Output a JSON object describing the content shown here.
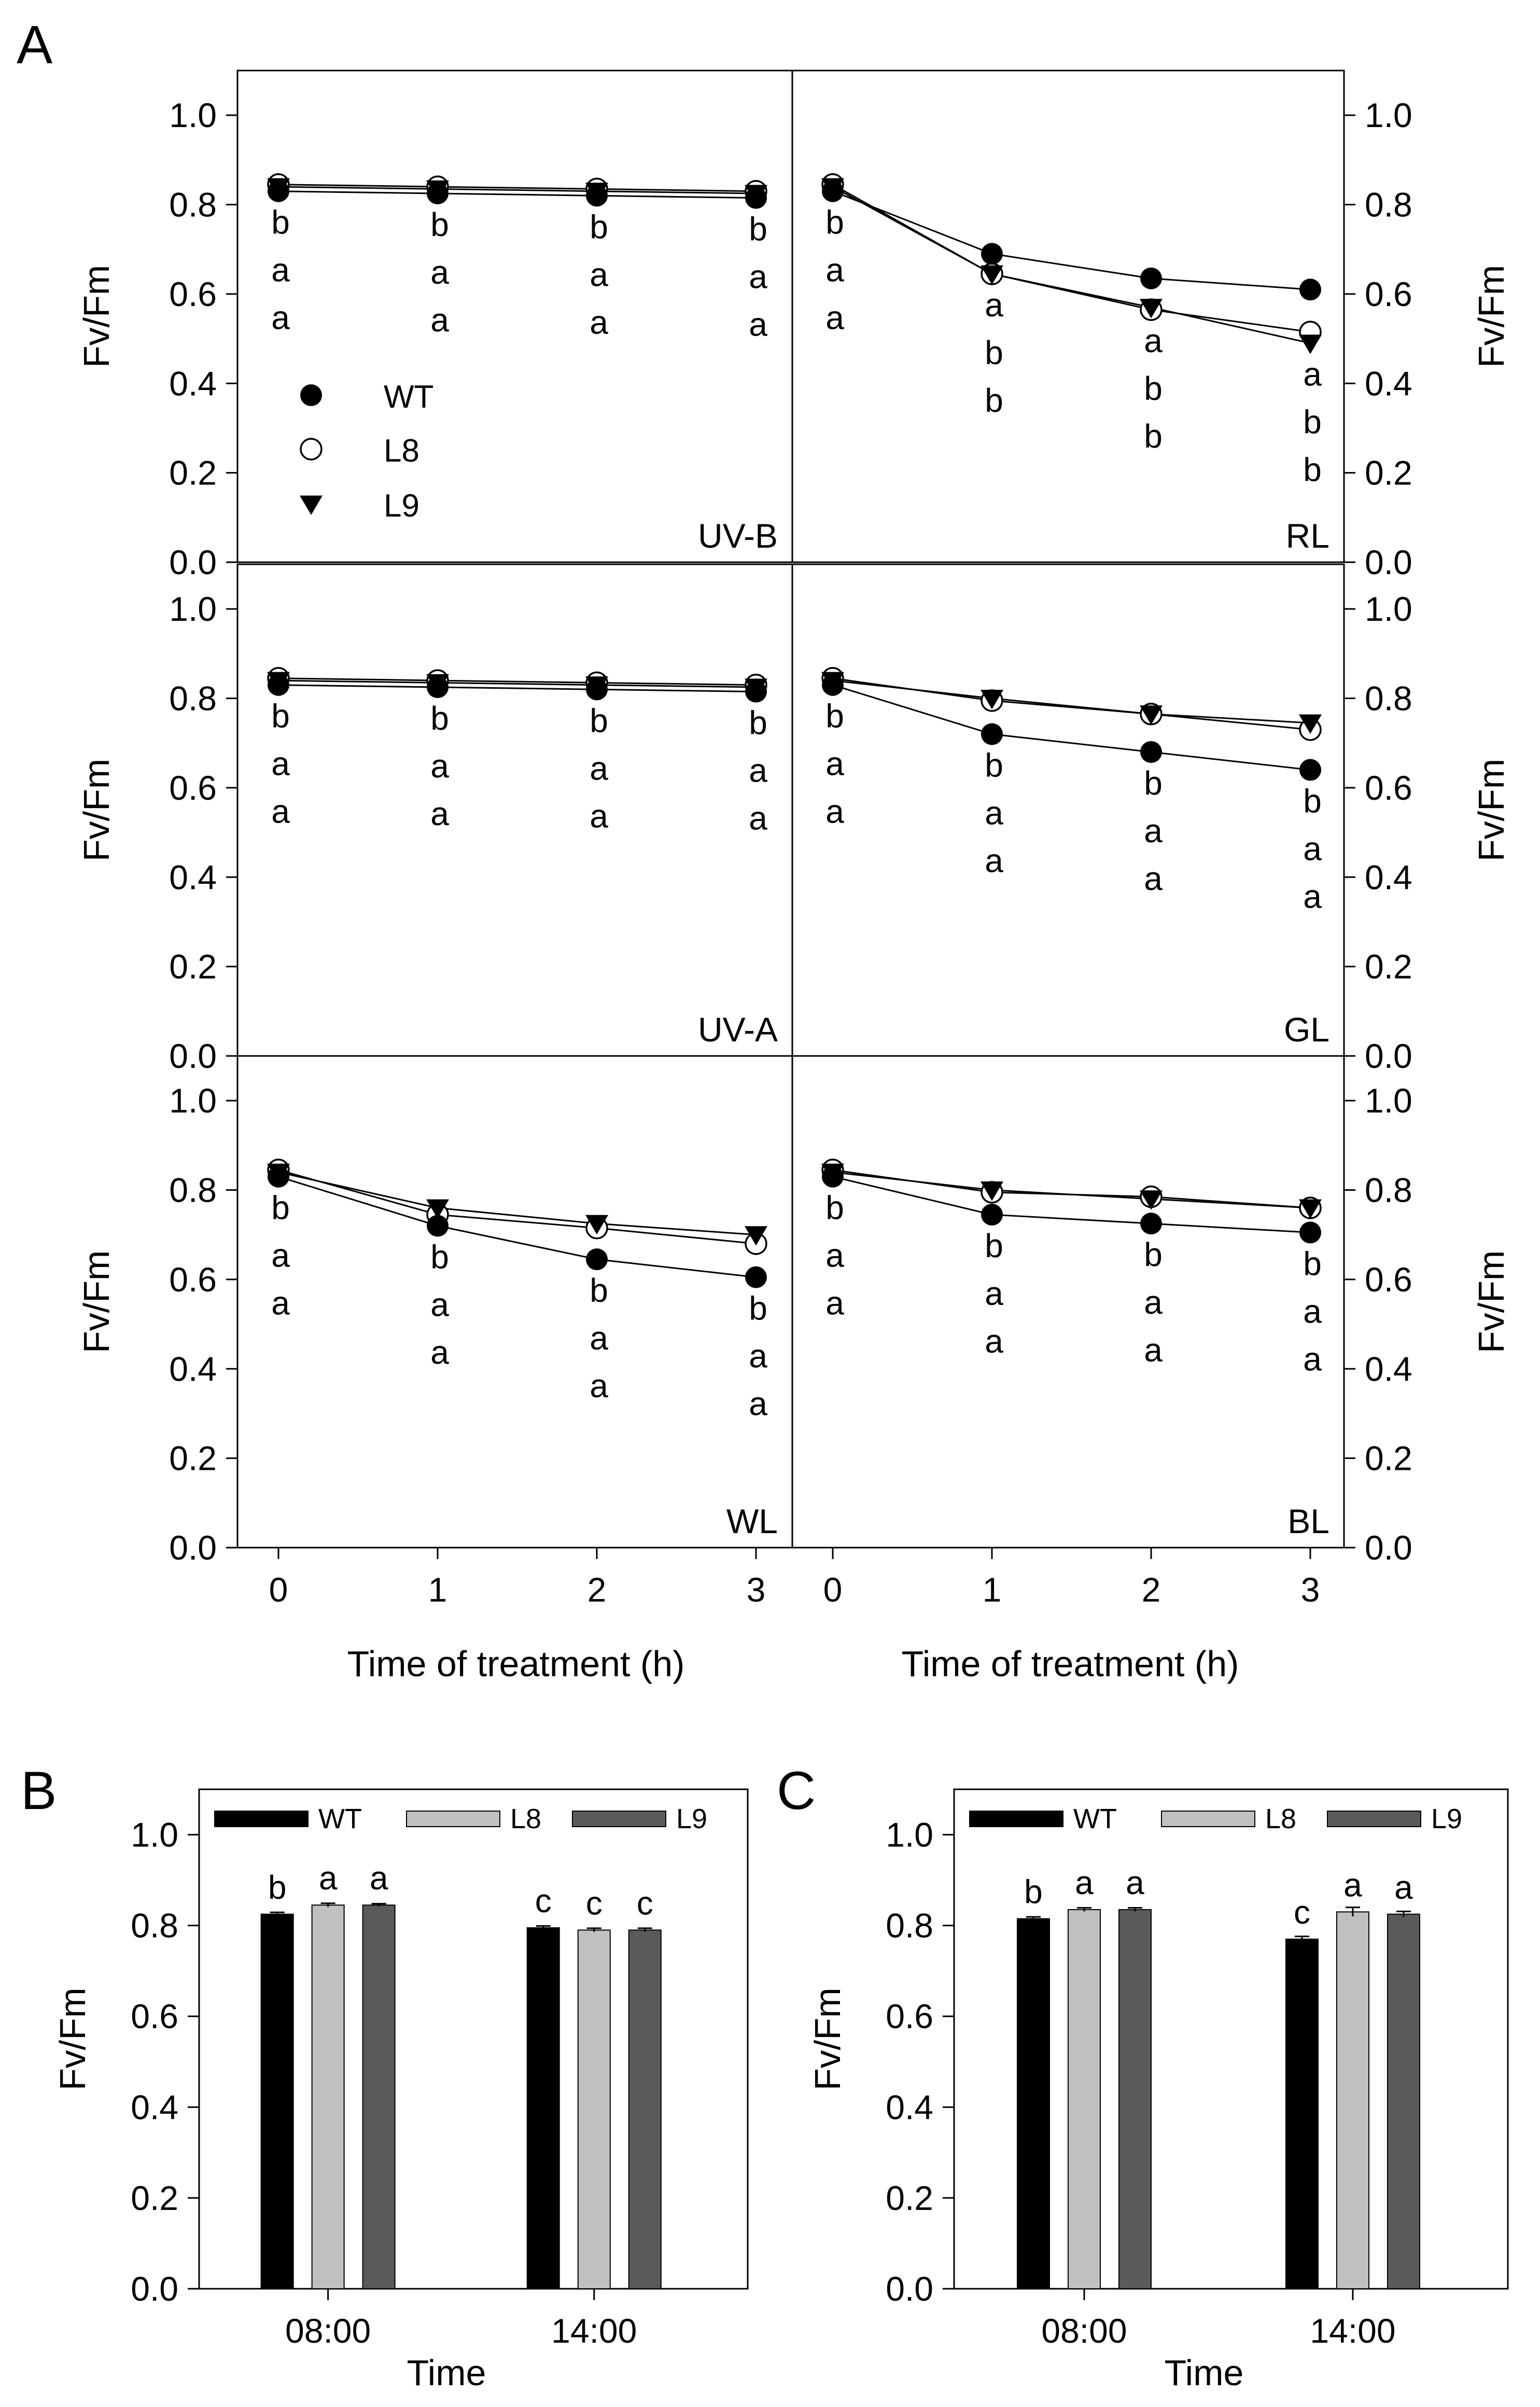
{
  "figure": {
    "panel_letters": [
      "A",
      "B",
      "C"
    ],
    "legend": [
      {
        "name": "WT",
        "marker": "filled-circle"
      },
      {
        "name": "L8",
        "marker": "open-circle"
      },
      {
        "name": "L9",
        "marker": "filled-triangle-down"
      }
    ]
  },
  "colors": {
    "WT_bar": "#000000",
    "L8_bar": "#c0c0c0",
    "L9_bar": "#5a5a5a",
    "axis": "#000000"
  },
  "chart_data": [
    {
      "id": "A-UV-B",
      "type": "line",
      "label": "UV-B",
      "x": [
        0,
        1,
        2,
        3
      ],
      "xlabel": "Time of treatment (h)",
      "ylabel": "Fv/Fm",
      "ylim": [
        0,
        1.1
      ],
      "series": [
        {
          "name": "WT",
          "values": [
            0.83,
            0.825,
            0.82,
            0.815
          ]
        },
        {
          "name": "L8",
          "values": [
            0.845,
            0.84,
            0.835,
            0.83
          ]
        },
        {
          "name": "L9",
          "values": [
            0.84,
            0.835,
            0.83,
            0.825
          ]
        }
      ],
      "sig_letters": [
        [
          "b",
          "a",
          "a"
        ],
        [
          "b",
          "a",
          "a"
        ],
        [
          "b",
          "a",
          "a"
        ],
        [
          "b",
          "a",
          "a"
        ]
      ]
    },
    {
      "id": "A-RL",
      "type": "line",
      "label": "RL",
      "x": [
        0,
        1,
        2,
        3
      ],
      "xlabel": "Time of treatment (h)",
      "ylabel": "Fv/Fm",
      "ylim": [
        0,
        1.1
      ],
      "series": [
        {
          "name": "WT",
          "values": [
            0.83,
            0.69,
            0.635,
            0.61
          ]
        },
        {
          "name": "L8",
          "values": [
            0.845,
            0.645,
            0.565,
            0.515
          ]
        },
        {
          "name": "L9",
          "values": [
            0.84,
            0.645,
            0.57,
            0.49
          ]
        }
      ],
      "sig_letters": [
        [
          "b",
          "a",
          "a"
        ],
        [
          "a",
          "b",
          "b"
        ],
        [
          "a",
          "b",
          "b"
        ],
        [
          "a",
          "b",
          "b"
        ]
      ]
    },
    {
      "id": "A-UV-A",
      "type": "line",
      "label": "UV-A",
      "x": [
        0,
        1,
        2,
        3
      ],
      "xlabel": "Time of treatment (h)",
      "ylabel": "Fv/Fm",
      "ylim": [
        0,
        1.1
      ],
      "series": [
        {
          "name": "WT",
          "values": [
            0.83,
            0.825,
            0.82,
            0.815
          ]
        },
        {
          "name": "L8",
          "values": [
            0.845,
            0.84,
            0.835,
            0.83
          ]
        },
        {
          "name": "L9",
          "values": [
            0.84,
            0.835,
            0.83,
            0.825
          ]
        }
      ],
      "sig_letters": [
        [
          "b",
          "a",
          "a"
        ],
        [
          "b",
          "a",
          "a"
        ],
        [
          "b",
          "a",
          "a"
        ],
        [
          "b",
          "a",
          "a"
        ]
      ]
    },
    {
      "id": "A-GL",
      "type": "line",
      "label": "GL",
      "x": [
        0,
        1,
        2,
        3
      ],
      "xlabel": "Time of treatment (h)",
      "ylabel": "Fv/Fm",
      "ylim": [
        0,
        1.1
      ],
      "series": [
        {
          "name": "WT",
          "values": [
            0.83,
            0.72,
            0.68,
            0.64
          ]
        },
        {
          "name": "L8",
          "values": [
            0.845,
            0.795,
            0.765,
            0.73
          ]
        },
        {
          "name": "L9",
          "values": [
            0.84,
            0.8,
            0.765,
            0.745
          ]
        }
      ],
      "sig_letters": [
        [
          "b",
          "a",
          "a"
        ],
        [
          "b",
          "a",
          "a"
        ],
        [
          "b",
          "a",
          "a"
        ],
        [
          "b",
          "a",
          "a"
        ]
      ]
    },
    {
      "id": "A-WL",
      "type": "line",
      "label": "WL",
      "x": [
        0,
        1,
        2,
        3
      ],
      "xlabel": "Time of treatment (h)",
      "ylabel": "Fv/Fm",
      "ylim": [
        0,
        1.1
      ],
      "series": [
        {
          "name": "WT",
          "values": [
            0.83,
            0.72,
            0.645,
            0.605
          ]
        },
        {
          "name": "L8",
          "values": [
            0.845,
            0.745,
            0.715,
            0.68
          ]
        },
        {
          "name": "L9",
          "values": [
            0.84,
            0.76,
            0.725,
            0.7
          ]
        }
      ],
      "sig_letters": [
        [
          "b",
          "a",
          "a"
        ],
        [
          "b",
          "a",
          "a"
        ],
        [
          "b",
          "a",
          "a"
        ],
        [
          "b",
          "a",
          "a"
        ]
      ]
    },
    {
      "id": "A-BL",
      "type": "line",
      "label": "BL",
      "x": [
        0,
        1,
        2,
        3
      ],
      "xlabel": "Time of treatment (h)",
      "ylabel": "Fv/Fm",
      "ylim": [
        0,
        1.1
      ],
      "series": [
        {
          "name": "WT",
          "values": [
            0.83,
            0.745,
            0.725,
            0.705
          ]
        },
        {
          "name": "L8",
          "values": [
            0.845,
            0.795,
            0.785,
            0.76
          ]
        },
        {
          "name": "L9",
          "values": [
            0.84,
            0.8,
            0.78,
            0.76
          ]
        }
      ],
      "sig_letters": [
        [
          "b",
          "a",
          "a"
        ],
        [
          "b",
          "a",
          "a"
        ],
        [
          "b",
          "a",
          "a"
        ],
        [
          "b",
          "a",
          "a"
        ]
      ]
    },
    {
      "id": "B",
      "type": "bar",
      "categories": [
        "08:00",
        "14:00"
      ],
      "xlabel": "Time",
      "ylabel": "Fv/Fm",
      "ylim": [
        0,
        1.1
      ],
      "series": [
        {
          "name": "WT",
          "values": [
            0.825,
            0.795
          ],
          "errors": [
            0.004,
            0.004
          ]
        },
        {
          "name": "L8",
          "values": [
            0.845,
            0.79
          ],
          "errors": [
            0.004,
            0.004
          ]
        },
        {
          "name": "L9",
          "values": [
            0.845,
            0.79
          ],
          "errors": [
            0.003,
            0.004
          ]
        }
      ],
      "sig_letters": [
        [
          "b",
          "a",
          "a"
        ],
        [
          "c",
          "c",
          "c"
        ]
      ]
    },
    {
      "id": "C",
      "type": "bar",
      "categories": [
        "08:00",
        "14:00"
      ],
      "xlabel": "Time",
      "ylabel": "Fv/Fm",
      "ylim": [
        0,
        1.1
      ],
      "series": [
        {
          "name": "WT",
          "values": [
            0.815,
            0.77
          ],
          "errors": [
            0.004,
            0.006
          ]
        },
        {
          "name": "L8",
          "values": [
            0.835,
            0.83
          ],
          "errors": [
            0.004,
            0.01
          ]
        },
        {
          "name": "L9",
          "values": [
            0.835,
            0.825
          ],
          "errors": [
            0.004,
            0.006
          ]
        }
      ],
      "sig_letters": [
        [
          "b",
          "a",
          "a"
        ],
        [
          "c",
          "a",
          "a"
        ]
      ]
    }
  ]
}
